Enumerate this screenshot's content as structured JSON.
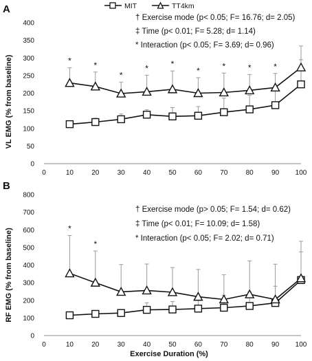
{
  "legend": {
    "items": [
      {
        "name": "MIT",
        "marker": "square"
      },
      {
        "name": "TT4km",
        "marker": "triangle"
      }
    ]
  },
  "x_axis_label": "Exercise Duration (%)",
  "chart_data": [
    {
      "type": "line",
      "panel": "A",
      "ylabel": "VL EMG (% from baseline)",
      "xlabel": "",
      "x": [
        10,
        20,
        30,
        40,
        50,
        60,
        70,
        80,
        90,
        100
      ],
      "xlim": [
        0,
        100
      ],
      "x_ticks": [
        0,
        10,
        20,
        30,
        40,
        50,
        60,
        70,
        80,
        90,
        100
      ],
      "ylim": [
        0,
        400
      ],
      "y_ticks": [
        0,
        50,
        100,
        150,
        200,
        250,
        300,
        350,
        400
      ],
      "series": [
        {
          "name": "MIT",
          "marker": "square",
          "values": [
            112,
            118,
            126,
            139,
            134,
            136,
            146,
            154,
            166,
            225
          ],
          "error_up": [
            10,
            11,
            15,
            14,
            25,
            26,
            40,
            40,
            42,
            70
          ]
        },
        {
          "name": "TT4km",
          "marker": "triangle",
          "values": [
            229,
            219,
            199,
            204,
            211,
            200,
            202,
            208,
            216,
            273
          ],
          "error_up": [
            43,
            41,
            32,
            47,
            52,
            44,
            55,
            45,
            40,
            61
          ]
        }
      ],
      "significance_markers": [
        10,
        20,
        30,
        40,
        50,
        60,
        70,
        80,
        90
      ],
      "marker_symbol": "*",
      "stats": [
        "† Exercise mode (p< 0.05; F= 16.76; d= 2.05)",
        "‡ Time (p< 0.01; F= 5.28; d= 1.14)",
        "* Interaction (p< 0.05; F= 3.69; d= 0.96)"
      ]
    },
    {
      "type": "line",
      "panel": "B",
      "ylabel": "RF EMG (% from baseline)",
      "xlabel": "Exercise Duration (%)",
      "x": [
        10,
        20,
        30,
        40,
        50,
        60,
        70,
        80,
        90,
        100
      ],
      "xlim": [
        0,
        100
      ],
      "x_ticks": [
        0,
        10,
        20,
        30,
        40,
        50,
        60,
        70,
        80,
        90,
        100
      ],
      "ylim": [
        0,
        800
      ],
      "y_ticks": [
        0,
        100,
        200,
        300,
        400,
        500,
        600,
        700,
        800
      ],
      "series": [
        {
          "name": "MIT",
          "marker": "square",
          "values": [
            115,
            123,
            128,
            146,
            148,
            153,
            158,
            168,
            185,
            315
          ],
          "error_up": [
            15,
            15,
            20,
            40,
            45,
            60,
            70,
            80,
            95,
            220
          ]
        },
        {
          "name": "TT4km",
          "marker": "triangle",
          "values": [
            353,
            300,
            248,
            256,
            246,
            220,
            205,
            234,
            205,
            325
          ],
          "error_up": [
            215,
            180,
            155,
            150,
            140,
            155,
            140,
            190,
            200,
            150
          ]
        }
      ],
      "significance_markers": [
        10,
        20
      ],
      "marker_symbol": "*",
      "stats": [
        "† Exercise mode (p> 0.05; F= 1.54; d= 0.62)",
        "‡ Time (p< 0.01; F= 10.09; d= 1.58)",
        "* Interaction (p< 0.05; F= 2.02; d= 0.71)"
      ]
    }
  ]
}
